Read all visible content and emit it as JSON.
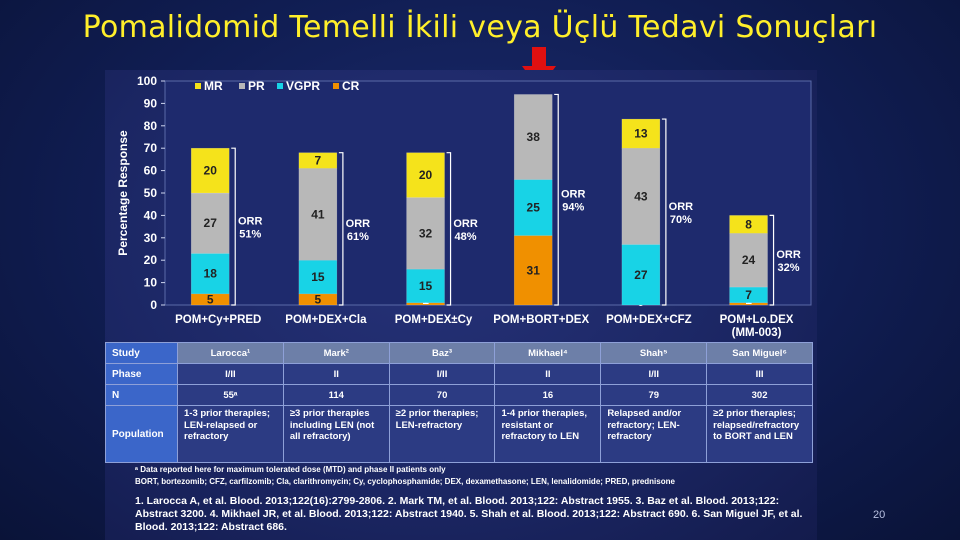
{
  "title": "Pomalidomid Temelli İkili veya Üçlü Tedavi Sonuçları",
  "page_number": "20",
  "colors": {
    "MR": "#f5e31b",
    "PR": "#b8b8b8",
    "VGPR": "#18d3e6",
    "CR": "#f09000",
    "title": "#ffef2a",
    "highlight_arrow": "#e01010"
  },
  "chart_data": {
    "type": "bar",
    "stacked": true,
    "ylabel": "Percentage Response",
    "ylim": [
      0,
      100
    ],
    "yticks": [
      0,
      10,
      20,
      30,
      40,
      50,
      60,
      70,
      80,
      90,
      100
    ],
    "legend_position": "top-left",
    "categories": [
      "POM+Cy+PRED",
      "POM+DEX+Cla",
      "POM+DEX±Cy",
      "POM+BORT+DEX",
      "POM+DEX+CFZ",
      "POM+Lo.DEX\n(MM-003)"
    ],
    "series": [
      {
        "name": "CR",
        "values": [
          5,
          5,
          1,
          31,
          0,
          1
        ]
      },
      {
        "name": "VGPR",
        "values": [
          18,
          15,
          15,
          25,
          27,
          7
        ]
      },
      {
        "name": "PR",
        "values": [
          27,
          41,
          32,
          38,
          43,
          24
        ]
      },
      {
        "name": "MR",
        "values": [
          20,
          7,
          20,
          0,
          13,
          8
        ]
      }
    ],
    "orr": [
      "ORR\n51%",
      "ORR\n61%",
      "ORR\n48%",
      "ORR\n94%",
      "ORR\n70%",
      "ORR\n32%"
    ],
    "highlighted_category": "POM+BORT+DEX"
  },
  "table": {
    "rows": [
      {
        "key": "study",
        "label": "Study",
        "cells": [
          "Larocca¹",
          "Mark²",
          "Baz³",
          "Mikhael⁴",
          "Shah⁵",
          "San Miguel⁶"
        ]
      },
      {
        "key": "phase",
        "label": "Phase",
        "cells": [
          "I/II",
          "II",
          "I/II",
          "II",
          "I/II",
          "III"
        ]
      },
      {
        "key": "n",
        "label": "N",
        "cells": [
          "55ᵃ",
          "114",
          "70",
          "16",
          "79",
          "302"
        ]
      },
      {
        "key": "pop",
        "label": "Population",
        "cells": [
          "1-3 prior therapies; LEN-relapsed or refractory",
          "≥3 prior therapies including LEN (not all refractory)",
          "≥2 prior therapies; LEN-refractory",
          "1-4 prior therapies, resistant or refractory to LEN",
          "Relapsed and/or refractory; LEN-refractory",
          "≥2 prior therapies; relapsed/refractory to BORT and LEN"
        ]
      }
    ]
  },
  "footnotes": {
    "mtd": "ᵃ Data reported here for maximum tolerated dose (MTD) and phase II patients only",
    "abbreviations": "BORT, bortezomib; CFZ, carfilzomib; Cla, clarithromycin; Cy, cyclophosphamide; DEX, dexamethasone; LEN, lenalidomide; PRED, prednisone",
    "references": "1. Larocca A, et al. Blood. 2013;122(16):2799-2806. 2. Mark TM, et al. Blood. 2013;122: Abstract 1955. 3. Baz et al. Blood. 2013;122: Abstract 3200. 4. Mikhael JR, et al. Blood. 2013;122: Abstract 1940. 5. Shah et al. Blood. 2013;122: Abstract 690. 6. San Miguel JF, et al. Blood. 2013;122: Abstract 686."
  }
}
